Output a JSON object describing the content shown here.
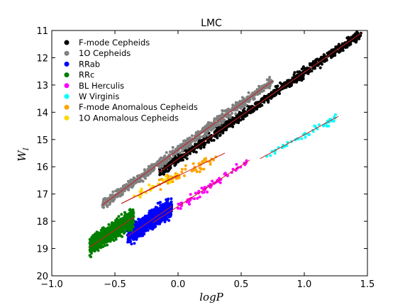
{
  "chart_data": {
    "type": "scatter",
    "title": "LMC",
    "xlabel": "log P",
    "ylabel": "W_I",
    "xlim": [
      -1.0,
      1.5
    ],
    "ylim": [
      20,
      11
    ],
    "y_inverted": true,
    "grid": false,
    "legend_position": "top-left",
    "x_ticks": [
      "−1.0",
      "−0.5",
      "0.0",
      "0.5",
      "1.0",
      "1.5"
    ],
    "x_tick_values": [
      -1.0,
      -0.5,
      0.0,
      0.5,
      1.0,
      1.5
    ],
    "y_ticks": [
      "11",
      "12",
      "13",
      "14",
      "15",
      "16",
      "17",
      "18",
      "19",
      "20"
    ],
    "y_tick_values": [
      11,
      12,
      13,
      14,
      15,
      16,
      17,
      18,
      19,
      20
    ],
    "fit_line_color": "#cc2222",
    "series": [
      {
        "name": "F-mode Cepheids",
        "color": "#000000",
        "x_range": [
          -0.15,
          1.45
        ],
        "fit": [
          [
            -0.15,
            16.2
          ],
          [
            1.45,
            11.1
          ]
        ],
        "scatter": 0.12,
        "count": 900
      },
      {
        "name": "1O Cepheids",
        "color": "#808080",
        "x_range": [
          -0.6,
          0.75
        ],
        "fit": [
          [
            -0.6,
            17.4
          ],
          [
            0.75,
            12.85
          ]
        ],
        "scatter": 0.12,
        "count": 700
      },
      {
        "name": "RRab",
        "color": "#0000ff",
        "x_range": [
          -0.4,
          -0.05
        ],
        "fit": [
          [
            -0.4,
            18.55
          ],
          [
            -0.05,
            17.45
          ]
        ],
        "scatter": 0.22,
        "count": 900
      },
      {
        "name": "RRc",
        "color": "#007f00",
        "x_range": [
          -0.7,
          -0.35
        ],
        "fit": [
          [
            -0.7,
            18.95
          ],
          [
            -0.35,
            17.85
          ]
        ],
        "scatter": 0.22,
        "count": 900
      },
      {
        "name": "BL Herculis",
        "color": "#ff00ff",
        "x_range": [
          0.0,
          0.55
        ],
        "fit": [
          [
            -0.2,
            18.05
          ],
          [
            0.57,
            15.75
          ]
        ],
        "scatter": 0.12,
        "count": 60
      },
      {
        "name": "W Virginis",
        "color": "#00ffff",
        "x_range": [
          0.68,
          1.25
        ],
        "fit": [
          [
            0.65,
            15.7
          ],
          [
            1.27,
            14.15
          ]
        ],
        "scatter": 0.1,
        "count": 45
      },
      {
        "name": "F-mode Anomalous Cepheids",
        "color": "#ffa500",
        "x_range": [
          -0.15,
          0.3
        ],
        "fit": [
          [
            -0.45,
            17.35
          ],
          [
            0.37,
            15.5
          ]
        ],
        "scatter": 0.15,
        "count": 55
      },
      {
        "name": "1O Anomalous Cepheids",
        "color": "#ffd700",
        "x_range": [
          -0.35,
          -0.0
        ],
        "fit": [
          [
            -0.45,
            17.35
          ],
          [
            0.0,
            16.3
          ]
        ],
        "scatter": 0.12,
        "count": 30
      }
    ]
  }
}
